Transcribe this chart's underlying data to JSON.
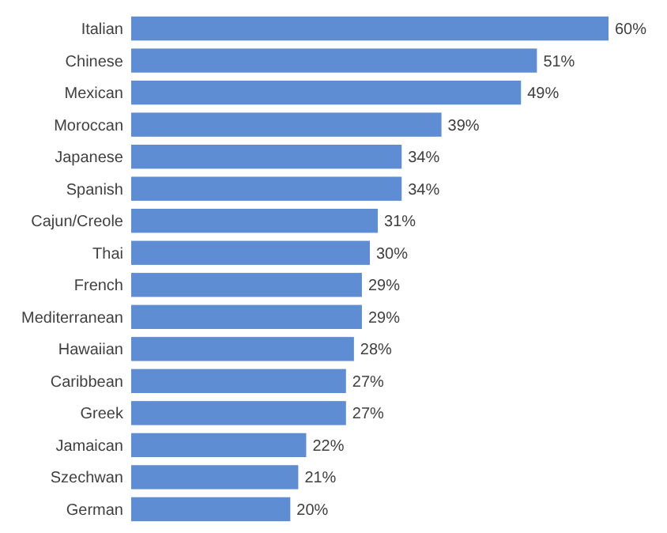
{
  "chart_data": {
    "type": "bar",
    "orientation": "horizontal",
    "categories": [
      "Italian",
      "Chinese",
      "Mexican",
      "Moroccan",
      "Japanese",
      "Spanish",
      "Cajun/Creole",
      "Thai",
      "French",
      "Mediterranean",
      "Hawaiian",
      "Caribbean",
      "Greek",
      "Jamaican",
      "Szechwan",
      "German"
    ],
    "values": [
      60,
      51,
      49,
      39,
      34,
      34,
      31,
      30,
      29,
      29,
      28,
      27,
      27,
      22,
      21,
      20
    ],
    "value_labels": [
      "60%",
      "51%",
      "49%",
      "39%",
      "34%",
      "34%",
      "31%",
      "30%",
      "29%",
      "29%",
      "28%",
      "27%",
      "27%",
      "22%",
      "21%",
      "20%"
    ],
    "color": "#5f8dd3"
  }
}
